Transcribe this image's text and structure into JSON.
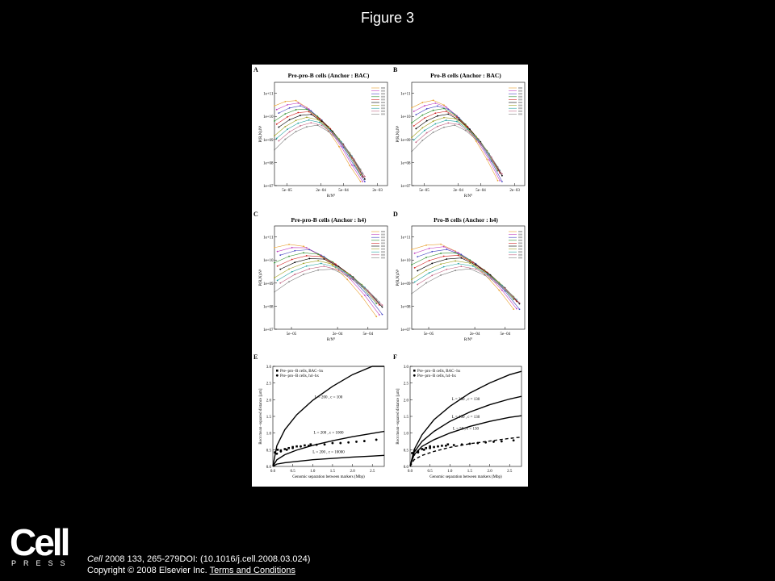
{
  "page": {
    "title": "Figure 3"
  },
  "panels": {
    "A": {
      "letter": "A",
      "title": "Pre-pro-B cells (Anchor : BAC)"
    },
    "B": {
      "letter": "B",
      "title": "Pro-B cells (Anchor : BAC)"
    },
    "C": {
      "letter": "C",
      "title": "Pre-pro-B cells (Anchor : h4)"
    },
    "D": {
      "letter": "D",
      "title": "Pro-B cells (Anchor : h4)"
    },
    "E": {
      "letter": "E"
    },
    "F": {
      "letter": "F"
    }
  },
  "chart_data": [
    {
      "panel": "A",
      "type": "line",
      "scale": "log-log",
      "title": "Pre-pro-B cells (Anchor : BAC)",
      "xlabel": "R/N⁰",
      "ylabel": "P(R,N).Nᵈ",
      "xticks": [
        "5e−05",
        "2e−04",
        "5e−04",
        "2e−03"
      ],
      "yticks": [
        "1e+11",
        "1e+10",
        "1e+09",
        "1e+08",
        "1e+07"
      ],
      "xrange": [
        3e-05,
        0.003
      ],
      "yrange": [
        10000000.0,
        300000000000.0
      ]
    },
    {
      "panel": "B",
      "type": "line",
      "scale": "log-log",
      "title": "Pro-B cells (Anchor : BAC)",
      "xlabel": "R/N⁰",
      "ylabel": "P(R,N).Nᵈ",
      "xticks": [
        "5e−05",
        "2e−04",
        "5e−04",
        "2e−03"
      ],
      "yticks": [
        "1e+11",
        "1e+10",
        "1e+09",
        "1e+08",
        "1e+07"
      ],
      "xrange": [
        3e-05,
        0.003
      ],
      "yrange": [
        10000000.0,
        300000000000.0
      ]
    },
    {
      "panel": "C",
      "type": "line",
      "scale": "log-log",
      "title": "Pre-pro-B cells (Anchor : h4)",
      "xlabel": "R/N⁰",
      "ylabel": "P(R,N).Nᵈ",
      "xticks": [
        "5e−05",
        "2e−04",
        "5e−04"
      ],
      "yticks": [
        "1e+11",
        "1e+10",
        "1e+09",
        "1e+08",
        "1e+07"
      ],
      "xrange": [
        3e-05,
        0.0009
      ],
      "yrange": [
        10000000.0,
        300000000000.0
      ]
    },
    {
      "panel": "D",
      "type": "line",
      "scale": "log-log",
      "title": "Pro-B cells (Anchor : h4)",
      "xlabel": "R/N⁰",
      "ylabel": "P(R,N).Nᵈ",
      "xticks": [
        "5e−05",
        "2e−04",
        "5e−04"
      ],
      "yticks": [
        "1e+11",
        "1e+10",
        "1e+09",
        "1e+08",
        "1e+07"
      ],
      "xrange": [
        3e-05,
        0.0009
      ],
      "yrange": [
        10000000.0,
        300000000000.0
      ]
    },
    {
      "panel": "E",
      "type": "scatter",
      "xlabel": "Genomic separation between markers (Mbp)",
      "ylabel": "Root mean−squared distance [µm]",
      "xlim": [
        0,
        2.8
      ],
      "ylim": [
        0,
        3.0
      ],
      "xticks": [
        0.0,
        0.5,
        1.0,
        1.5,
        2.0,
        2.5
      ],
      "yticks": [
        0.0,
        0.5,
        1.0,
        1.5,
        2.0,
        2.5,
        3.0
      ],
      "legend": [
        "Pre−pro−B cells, BAC−hx",
        "Pre−pro−B cells, h4−hx"
      ],
      "curve_labels": [
        "L = 200 , c = 100",
        "L = 200 , c = 1000",
        "L = 200 , c = 10000"
      ],
      "series": [
        {
          "name": "Pre−pro−B cells, BAC−hx",
          "marker": "square",
          "x": [
            0.05,
            0.12,
            0.2,
            0.3,
            0.4,
            0.5,
            0.6,
            0.8,
            0.95
          ],
          "y": [
            0.42,
            0.5,
            0.48,
            0.52,
            0.55,
            0.58,
            0.6,
            0.63,
            0.66
          ]
        },
        {
          "name": "Pre−pro−B cells, h4−hx",
          "marker": "circle",
          "x": [
            0.1,
            0.2,
            0.35,
            0.5,
            0.7,
            0.9,
            1.1,
            1.3,
            1.5,
            1.7,
            1.9,
            2.1,
            2.3,
            2.6
          ],
          "y": [
            0.38,
            0.45,
            0.5,
            0.55,
            0.6,
            0.62,
            0.65,
            0.66,
            0.7,
            0.7,
            0.72,
            0.74,
            0.76,
            0.8
          ]
        }
      ],
      "curves": [
        {
          "x": [
            0,
            0.1,
            0.3,
            0.6,
            1.0,
            1.5,
            2.0,
            2.5,
            2.8
          ],
          "y": [
            0,
            0.62,
            1.1,
            1.55,
            1.98,
            2.4,
            2.75,
            3.05,
            3.2
          ]
        },
        {
          "x": [
            0,
            0.1,
            0.3,
            0.6,
            1.0,
            1.5,
            2.0,
            2.5,
            2.8
          ],
          "y": [
            0,
            0.2,
            0.35,
            0.49,
            0.63,
            0.77,
            0.89,
            0.99,
            1.05
          ]
        },
        {
          "x": [
            0,
            0.1,
            0.3,
            0.6,
            1.0,
            1.5,
            2.0,
            2.5,
            2.8
          ],
          "y": [
            0,
            0.07,
            0.11,
            0.15,
            0.2,
            0.24,
            0.28,
            0.31,
            0.33
          ]
        }
      ]
    },
    {
      "panel": "F",
      "type": "scatter",
      "xlabel": "Genomic separation between markers (Mbp)",
      "ylabel": "Root mean−squared distance [µm]",
      "xlim": [
        0,
        2.8
      ],
      "ylim": [
        0,
        3.0
      ],
      "xticks": [
        0.0,
        0.5,
        1.0,
        1.5,
        2.0,
        2.5
      ],
      "yticks": [
        0.0,
        0.5,
        1.0,
        1.5,
        2.0,
        2.5,
        3.0
      ],
      "legend": [
        "Pre−pro−B cells, BAC−hx",
        "Pre−pro−B cells, h4−hx"
      ],
      "curve_labels": [
        "L = 200 , c = 130",
        "L = 100 , c = 130",
        "L = 50 , c = 130"
      ],
      "series": [
        {
          "name": "Pre−pro−B cells, BAC−hx",
          "marker": "square",
          "x": [
            0.05,
            0.12,
            0.2,
            0.3,
            0.4,
            0.5,
            0.6,
            0.8,
            0.95
          ],
          "y": [
            0.4,
            0.48,
            0.46,
            0.52,
            0.55,
            0.6,
            0.58,
            0.62,
            0.66
          ]
        },
        {
          "name": "Pre−pro−B cells, h4−hx",
          "marker": "circle",
          "x": [
            0.1,
            0.2,
            0.35,
            0.5,
            0.7,
            0.9,
            1.1,
            1.3,
            1.5,
            1.7,
            1.9,
            2.1,
            2.3,
            2.6
          ],
          "y": [
            0.35,
            0.42,
            0.5,
            0.55,
            0.6,
            0.62,
            0.64,
            0.66,
            0.68,
            0.7,
            0.72,
            0.74,
            0.75,
            0.78
          ]
        }
      ],
      "curves": [
        {
          "x": [
            0,
            0.1,
            0.3,
            0.6,
            1.0,
            1.5,
            2.0,
            2.5,
            2.8
          ],
          "y": [
            0,
            0.5,
            0.95,
            1.4,
            1.8,
            2.2,
            2.5,
            2.75,
            2.85
          ]
        },
        {
          "x": [
            0,
            0.1,
            0.3,
            0.6,
            1.0,
            1.5,
            2.0,
            2.5,
            2.8
          ],
          "y": [
            0,
            0.42,
            0.75,
            1.05,
            1.35,
            1.63,
            1.85,
            2.02,
            2.1
          ]
        },
        {
          "x": [
            0,
            0.1,
            0.3,
            0.6,
            1.0,
            1.5,
            2.0,
            2.5,
            2.8
          ],
          "y": [
            0,
            0.35,
            0.6,
            0.8,
            1.0,
            1.2,
            1.35,
            1.47,
            1.52
          ]
        },
        {
          "x": [
            0,
            0.1,
            0.3,
            0.6,
            1.0,
            1.5,
            2.0,
            2.5,
            2.8
          ],
          "y": [
            0,
            0.2,
            0.33,
            0.45,
            0.57,
            0.68,
            0.76,
            0.84,
            0.88
          ],
          "dashed": true
        }
      ]
    }
  ],
  "footer": {
    "logo_word": "Cell",
    "logo_press": "PRESS",
    "journal": "Cell",
    "citation_rest": " 2008 133, 265-279DOI: (10.1016/j.cell.2008.03.024)",
    "copyright": "Copyright © 2008 Elsevier Inc.",
    "link": "Terms and Conditions"
  }
}
